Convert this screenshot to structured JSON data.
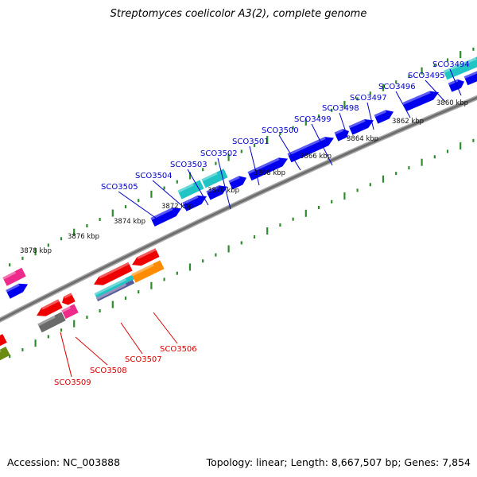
{
  "title": "Streptomyces coelicolor A3(2), complete genome",
  "footer": {
    "accession": "Accession: NC_003888",
    "summary": "Topology: linear; Length: 8,667,507 bp; Genes: 7,854"
  },
  "colors": {
    "backbone": "#808080",
    "ticks": "#2e8b2e",
    "forward_label": "#0000cc",
    "reverse_label": "#dd0000",
    "blue": "#0000ee",
    "cyan": "#20c4c4",
    "red": "#ee0000",
    "magenta": "#ee2a8a",
    "gray": "#6a6a6a",
    "orange": "#ff8c00",
    "olive": "#6a8a10"
  },
  "scale_labels": [
    "3860 kbp",
    "3862 kbp",
    "3864 kbp",
    "3866 kbp",
    "3868 kbp",
    "3870 kbp",
    "3872 kbp",
    "3874 kbp",
    "3876 kbp",
    "3878 kbp"
  ],
  "forward_genes": [
    "SCO3494",
    "SCO3495",
    "SCO3496",
    "SCO3497",
    "SCO3498",
    "SCO3499",
    "SCO3500",
    "SCO3501",
    "SCO3502",
    "SCO3503",
    "SCO3504",
    "SCO3505"
  ],
  "reverse_genes": [
    "SCO3506",
    "SCO3507",
    "SCO3508",
    "SCO3509"
  ]
}
